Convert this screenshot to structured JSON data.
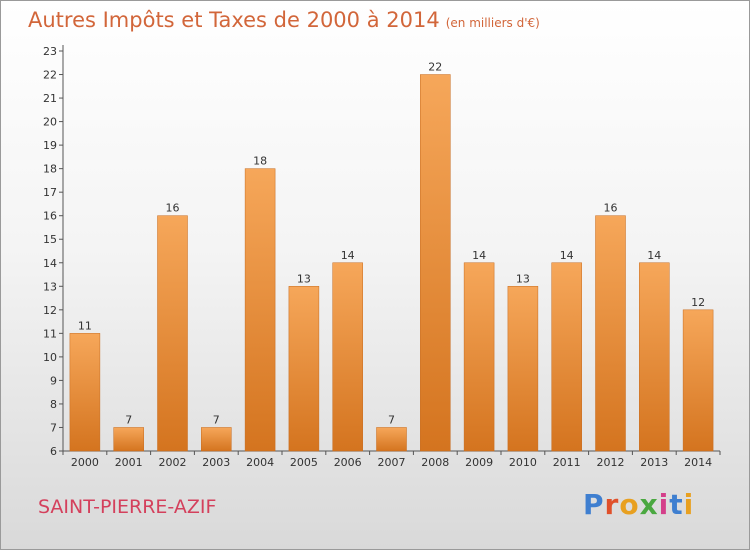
{
  "header": {
    "title": "Autres Impôts et Taxes de 2000 à 2014",
    "unit": "(en milliers d'€)"
  },
  "footer": {
    "commune": "SAINT-PIERRE-AZIF",
    "logo_text": "Proxiti",
    "logo_colors": [
      "#3f7fd0",
      "#e0502a",
      "#e8a020",
      "#4aa840",
      "#d43f8a",
      "#3f7fd0",
      "#e8a020"
    ]
  },
  "colors": {
    "bar_light": "#f6a75a",
    "bar_dark": "#d4741f",
    "axis": "#555555",
    "text": "#333333"
  },
  "chart_data": {
    "type": "bar",
    "categories": [
      "2000",
      "2001",
      "2002",
      "2003",
      "2004",
      "2005",
      "2006",
      "2007",
      "2008",
      "2009",
      "2010",
      "2011",
      "2012",
      "2013",
      "2014"
    ],
    "values": [
      11,
      7,
      16,
      7,
      18,
      13,
      14,
      7,
      22,
      14,
      13,
      14,
      16,
      14,
      12
    ],
    "title": "Autres Impôts et Taxes de 2000 à 2014",
    "ylabel": "",
    "xlabel": "",
    "ylim": [
      6,
      23
    ],
    "yticks": [
      6,
      7,
      8,
      9,
      10,
      11,
      12,
      13,
      14,
      15,
      16,
      17,
      18,
      19,
      20,
      21,
      22,
      23
    ],
    "grid": false
  }
}
